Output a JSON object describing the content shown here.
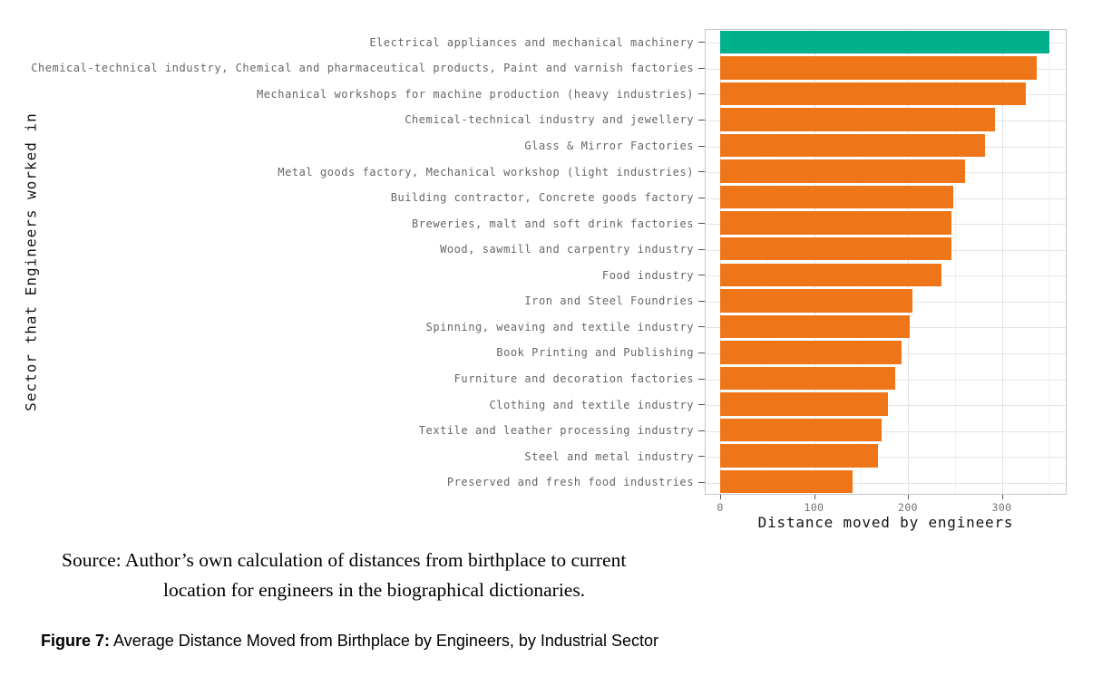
{
  "chart_data": {
    "type": "bar",
    "orientation": "horizontal",
    "title": "",
    "xlabel": "Distance moved by engineers",
    "ylabel": "Sector that Engineers worked in",
    "xlim": [
      0,
      369
    ],
    "x_major_ticks": [
      0,
      100,
      200,
      300
    ],
    "x_minor_ticks": [
      50,
      150,
      250,
      350
    ],
    "grid": true,
    "legend": false,
    "categories": [
      "Electrical appliances and mechanical machinery",
      "Chemical-technical industry, Chemical and pharmaceutical products, Paint and varnish factories",
      "Mechanical workshops for machine production (heavy industries)",
      "Chemical-technical industry and jewellery",
      "Glass & Mirror Factories",
      "Metal goods factory, Mechanical workshop (light industries)",
      "Building contractor, Concrete goods factory",
      "Breweries, malt and soft drink factories",
      "Wood, sawmill and carpentry industry",
      "Food industry",
      "Iron and Steel Foundries",
      "Spinning, weaving and textile industry",
      "Book Printing and Publishing",
      "Furniture and decoration factories",
      "Clothing and textile industry",
      "Textile and leather processing industry",
      "Steel and metal industry",
      "Preserved and fresh food industries"
    ],
    "values": [
      351,
      337,
      326,
      293,
      282,
      261,
      248,
      246,
      246,
      236,
      205,
      202,
      193,
      186,
      179,
      172,
      168,
      141
    ],
    "highlight_index": 0,
    "colors": {
      "highlight_bar": "#00b18c",
      "default_bar": "#ee7618",
      "grid_major": "#e4e4e4",
      "grid_minor": "#f2f2f2",
      "panel_border": "#c6c6c6",
      "category_text": "#666666",
      "tick_text": "#737373",
      "axis_title_text": "#141414"
    }
  },
  "source_note": {
    "line1": "Source: Author’s own calculation of distances from birthplace to current",
    "line2": "location for engineers in the biographical dictionaries."
  },
  "figure_caption": {
    "label": "Figure 7:",
    "text": " Average Distance Moved from Birthplace by Engineers, by Industrial Sector"
  }
}
